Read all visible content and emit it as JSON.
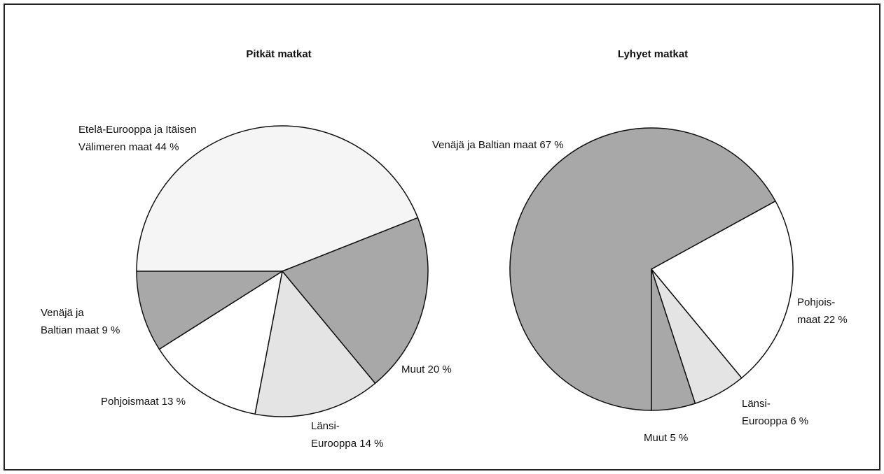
{
  "chart_data": [
    {
      "type": "pie",
      "title": "Pitkät matkat",
      "values": [
        44,
        20,
        14,
        13,
        9
      ],
      "value_labels": [
        [
          "Etelä-Eurooppa ja Itäisen",
          "Välimeren maat 44 %"
        ],
        [
          "Muut 20 %"
        ],
        [
          "Länsi-",
          "Eurooppa 14 %"
        ],
        [
          "Pohjoismaat 13 %"
        ],
        [
          "Venäjä ja",
          "Baltian maat 9 %"
        ]
      ],
      "colors": [
        "#f5f5f5",
        "#a8a8a8",
        "#e4e4e4",
        "#ffffff",
        "#a8a8a8"
      ]
    },
    {
      "type": "pie",
      "title": "Lyhyet matkat",
      "values": [
        67,
        22,
        6,
        5
      ],
      "value_labels": [
        [
          "Venäjä ja Baltian maat 67 %"
        ],
        [
          "Pohjois-",
          "maat 22 %"
        ],
        [
          "Länsi-",
          "Eurooppa 6 %"
        ],
        [
          "Muut 5 %"
        ]
      ],
      "colors": [
        "#a8a8a8",
        "#ffffff",
        "#e4e4e4",
        "#a8a8a8"
      ]
    }
  ]
}
